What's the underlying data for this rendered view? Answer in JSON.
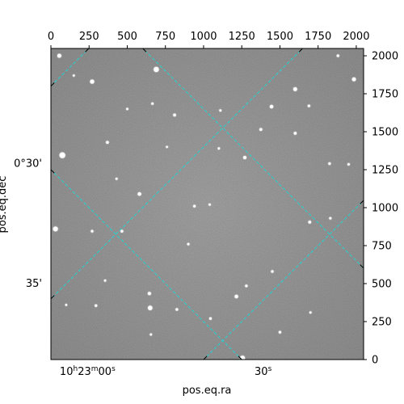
{
  "chart_data": {
    "type": "image",
    "pixel_axes": {
      "x_range": [
        0,
        2048
      ],
      "y_range": [
        0,
        2048
      ],
      "x_ticks": [
        0,
        250,
        500,
        750,
        1000,
        1250,
        1500,
        1750,
        2000
      ],
      "y_ticks": [
        0,
        250,
        500,
        750,
        1000,
        1250,
        1500,
        1750,
        2000
      ],
      "x_tick_labels": [
        "0",
        "250",
        "500",
        "750",
        "1000",
        "1250",
        "1500",
        "1750",
        "2000"
      ],
      "y_tick_labels": [
        "0",
        "250",
        "500",
        "750",
        "1000",
        "1250",
        "1500",
        "1750",
        "2000"
      ]
    },
    "world_axes": {
      "xlabel": "pos.eq.ra",
      "ylabel": "pos.eq.dec",
      "ra_tick_labels": [
        {
          "h": "10",
          "m": "23",
          "s": "00",
          "x_pix": 240
        },
        {
          "h": "",
          "m": "",
          "s": "30",
          "x_pix": 1390
        }
      ],
      "dec_tick_labels": [
        {
          "text": "0°30'",
          "y_pix": 1290
        },
        {
          "text": "35'",
          "y_pix": 500
        }
      ]
    },
    "grid": {
      "color": "#22d4d4",
      "style": "dashed",
      "family_a_x_intercepts": [
        -1800,
        -400,
        1000,
        2400
      ],
      "family_b_x_intercepts": [
        -1550,
        -150,
        1250,
        2650
      ],
      "slope_a": 1.0,
      "slope_b": -1.0
    },
    "stars": [
      [
        55,
        2000,
        2.5
      ],
      [
        690,
        1910,
        3.2
      ],
      [
        1600,
        1780,
        2.4
      ],
      [
        270,
        1830,
        2.6
      ],
      [
        1445,
        1665,
        2.2
      ],
      [
        75,
        1345,
        3.6
      ],
      [
        1985,
        1845,
        2.4
      ],
      [
        1690,
        1670,
        1.6
      ],
      [
        1110,
        1640,
        1.4
      ],
      [
        665,
        1685,
        1.5
      ],
      [
        810,
        1610,
        1.8
      ],
      [
        1375,
        1515,
        1.8
      ],
      [
        370,
        1430,
        1.8
      ],
      [
        1270,
        1330,
        2.0
      ],
      [
        1825,
        1290,
        1.6
      ],
      [
        580,
        1090,
        2.2
      ],
      [
        1950,
        1285,
        1.5
      ],
      [
        940,
        1010,
        1.6
      ],
      [
        1040,
        1020,
        1.4
      ],
      [
        270,
        845,
        1.6
      ],
      [
        465,
        845,
        1.7
      ],
      [
        30,
        860,
        3.0
      ],
      [
        900,
        760,
        1.5
      ],
      [
        1450,
        580,
        1.6
      ],
      [
        1280,
        485,
        1.6
      ],
      [
        1600,
        1490,
        1.8
      ],
      [
        1215,
        415,
        2.2
      ],
      [
        645,
        435,
        2.0
      ],
      [
        1695,
        905,
        1.8
      ],
      [
        1830,
        930,
        1.5
      ],
      [
        355,
        520,
        1.4
      ],
      [
        100,
        360,
        1.3
      ],
      [
        650,
        340,
        2.8
      ],
      [
        825,
        330,
        1.6
      ],
      [
        1045,
        270,
        1.6
      ],
      [
        1500,
        180,
        1.6
      ],
      [
        1255,
        10,
        3.0
      ],
      [
        655,
        165,
        1.4
      ],
      [
        295,
        355,
        1.6
      ],
      [
        500,
        1650,
        1.4
      ],
      [
        1880,
        2000,
        1.6
      ],
      [
        150,
        1870,
        1.3
      ],
      [
        1100,
        1390,
        1.4
      ],
      [
        430,
        1190,
        1.4
      ],
      [
        1700,
        310,
        1.4
      ],
      [
        760,
        1400,
        1.3
      ]
    ]
  }
}
